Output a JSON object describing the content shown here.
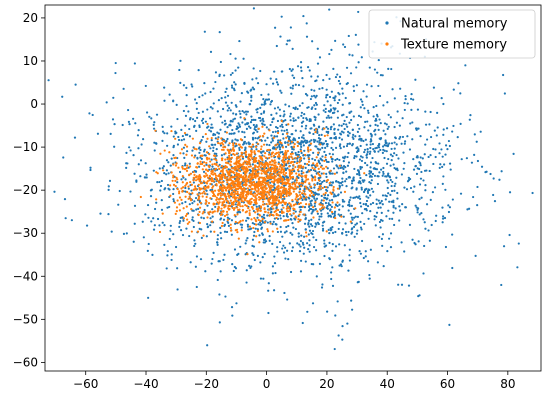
{
  "chart_data": {
    "type": "scatter",
    "title": "",
    "xlabel": "",
    "ylabel": "",
    "xlim": [
      -73.5,
      91
    ],
    "ylim": [
      -62,
      23
    ],
    "xticks": [
      -60,
      -40,
      -20,
      0,
      20,
      40,
      60,
      80
    ],
    "yticks": [
      -60,
      -50,
      -40,
      -30,
      -20,
      -10,
      0,
      10,
      20
    ],
    "grid": false,
    "legend_position": "top-right",
    "series": [
      {
        "name": "Natural memory",
        "color": "#1f77b4",
        "count": 2600,
        "center": [
          8,
          -15
        ],
        "spread": [
          26,
          12
        ]
      },
      {
        "name": "Texture memory",
        "color": "#ff7f0e",
        "count": 1600,
        "center": [
          -5,
          -18
        ],
        "spread": [
          12,
          4.8
        ]
      }
    ]
  }
}
